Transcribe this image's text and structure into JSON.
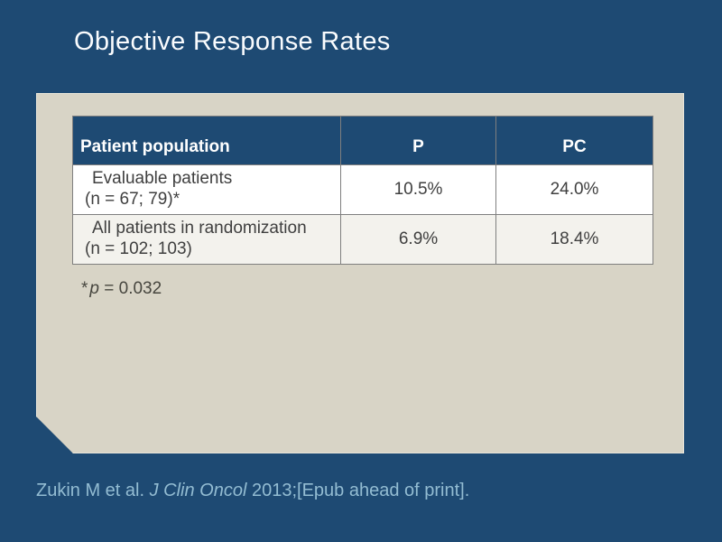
{
  "title": "Objective Response Rates",
  "table": {
    "headers": [
      "Patient population",
      "P",
      "PC"
    ],
    "rows": [
      {
        "population_line1": "Evaluable patients",
        "population_line2": "(n = 67; 79)*",
        "p_value": "10.5%",
        "pc_value": "24.0%"
      },
      {
        "population_line1": "All patients in randomization",
        "population_line2": "(n = 102; 103)",
        "p_value": "6.9%",
        "pc_value": "18.4%"
      }
    ]
  },
  "footnote": {
    "marker": "*",
    "variable": "p",
    "value_text": " = 0.032"
  },
  "citation": {
    "authors": "Zukin M et al. ",
    "journal": "J Clin Oncol",
    "rest": " 2013;[Epub ahead of print]."
  },
  "colors": {
    "background": "#1E4A73",
    "panel": "#D8D4C6",
    "panel_edge_highlight": "#E8E5DA",
    "table_header_bg": "#1E4A73",
    "table_header_text": "#FFFFFF",
    "table_row_bg": "#FFFFFF",
    "table_row_alt_bg": "#F3F2ED",
    "table_border": "#7F7F7F",
    "body_text": "#3F3F3F",
    "title_text": "#FAFCFE",
    "footnote_text": "#47463F",
    "citation_text": "#93BCD2"
  }
}
